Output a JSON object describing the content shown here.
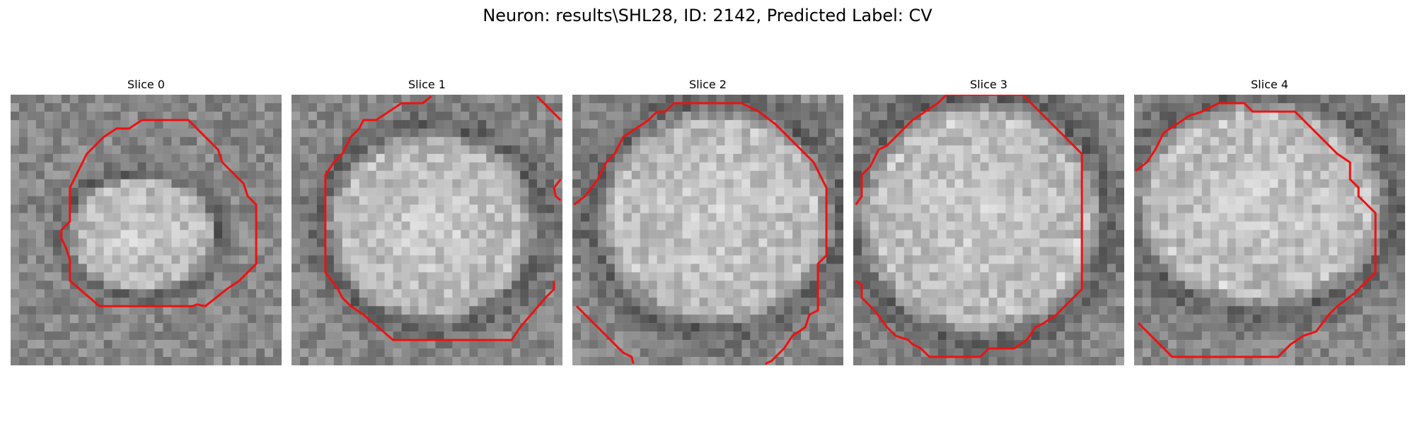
{
  "figure": {
    "title": "Neuron: results\\SHL28, ID: 2142, Predicted Label: CV"
  },
  "colors": {
    "contour": "#ee1111"
  },
  "panels": [
    {
      "title": "Slice 0",
      "icon": "microscopy-slice"
    },
    {
      "title": "Slice 1",
      "icon": "microscopy-slice"
    },
    {
      "title": "Slice 2",
      "icon": "microscopy-slice"
    },
    {
      "title": "Slice 3",
      "icon": "microscopy-slice"
    },
    {
      "title": "Slice 4",
      "icon": "microscopy-slice"
    }
  ]
}
